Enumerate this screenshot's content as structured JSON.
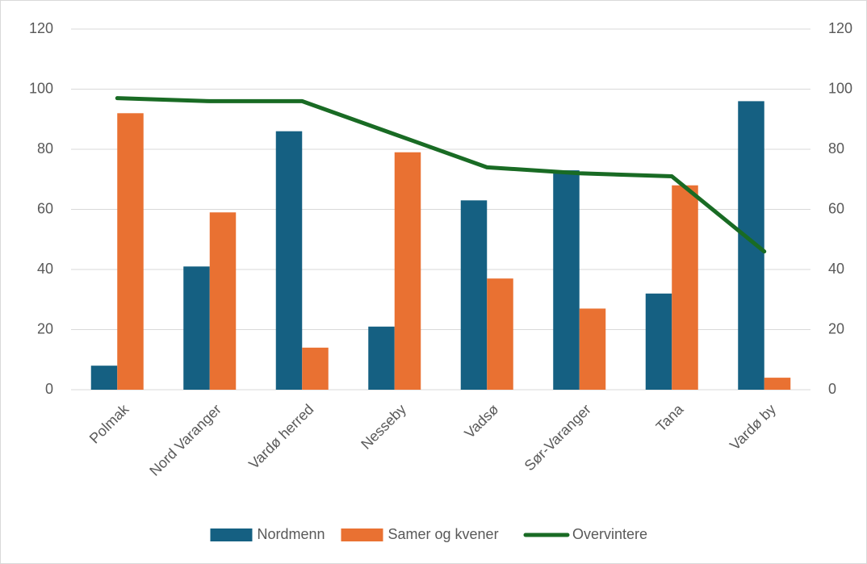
{
  "chart_data": {
    "type": "bar",
    "categories": [
      "Polmak",
      "Nord Varanger",
      "Vardø herred",
      "Nesseby",
      "Vadsø",
      "Sør-Varanger",
      "Tana",
      "Vardø by"
    ],
    "series": [
      {
        "name": "Nordmenn",
        "color": "#156082",
        "values": [
          8,
          41,
          86,
          21,
          63,
          73,
          32,
          96
        ]
      },
      {
        "name": "Samer og kvener",
        "color": "#e97132",
        "values": [
          92,
          59,
          14,
          79,
          37,
          27,
          68,
          4
        ]
      },
      {
        "name": "Overvintere",
        "color": "#196b24",
        "type": "line",
        "axis": "y2",
        "values": [
          97,
          96,
          96,
          85,
          74,
          72,
          71,
          46
        ]
      }
    ],
    "ylim": [
      0,
      120
    ],
    "yticks": [
      0,
      20,
      40,
      60,
      80,
      100,
      120
    ],
    "y2lim": [
      0,
      120
    ],
    "y2ticks": [
      0,
      20,
      40,
      60,
      80,
      100,
      120
    ],
    "grid": true,
    "legend": "bottom"
  }
}
